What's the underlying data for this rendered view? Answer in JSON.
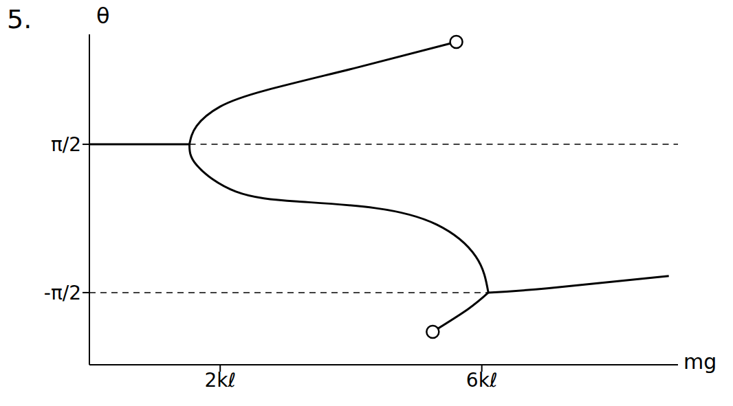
{
  "chart_data": {
    "type": "line",
    "title": "5.",
    "x_label": "mg",
    "y_label": "θ",
    "xlim": [
      0,
      9
    ],
    "ylim": [
      -3.1,
      3.9
    ],
    "xticks": [
      {
        "value": 2,
        "label": "2kℓ"
      },
      {
        "value": 6,
        "label": "6kℓ"
      }
    ],
    "yticks": [
      {
        "value": 1.5708,
        "label": "π/2"
      },
      {
        "value": -1.5708,
        "label": "-π/2"
      }
    ],
    "grid": false,
    "series": [
      {
        "type": "line",
        "color": "#000000",
        "line_style": "solid",
        "x": [
          0,
          1.53
        ],
        "values": [
          1.5708,
          1.5708
        ]
      },
      {
        "type": "line",
        "color": "#000000",
        "line_style": "dashed",
        "x": [
          1.53,
          9
        ],
        "values": [
          1.5708,
          1.5708
        ]
      },
      {
        "type": "line",
        "color": "#000000",
        "line_style": "solid",
        "x": [
          1.53,
          1.64,
          2.0,
          2.71,
          4.13,
          5.61
        ],
        "values": [
          1.5708,
          1.96,
          2.37,
          2.72,
          3.21,
          3.74
        ]
      },
      {
        "type": "line",
        "color": "#000000",
        "line_style": "solid",
        "x": [
          1.53,
          1.64,
          2.24,
          3.18,
          4.37,
          5.31,
          5.91,
          6.1
        ],
        "values": [
          1.5708,
          1.13,
          0.57,
          0.36,
          0.22,
          -0.13,
          -0.81,
          -1.5708
        ]
      },
      {
        "type": "line",
        "color": "#000000",
        "line_style": "dashed",
        "x": [
          0,
          6.1
        ],
        "values": [
          -1.5708,
          -1.5708
        ]
      },
      {
        "type": "line",
        "color": "#000000",
        "line_style": "solid",
        "x": [
          6.1,
          7.0,
          8.86
        ],
        "values": [
          -1.5708,
          -1.48,
          -1.22
        ]
      },
      {
        "type": "line",
        "color": "#000000",
        "line_style": "solid",
        "x": [
          6.1,
          5.79,
          5.25
        ],
        "values": [
          -1.5708,
          -1.92,
          -2.4
        ]
      },
      {
        "type": "scatter",
        "color": "#000000",
        "marker": "circle",
        "x": [
          5.61,
          5.25
        ],
        "values": [
          3.74,
          -2.4
        ]
      }
    ]
  }
}
